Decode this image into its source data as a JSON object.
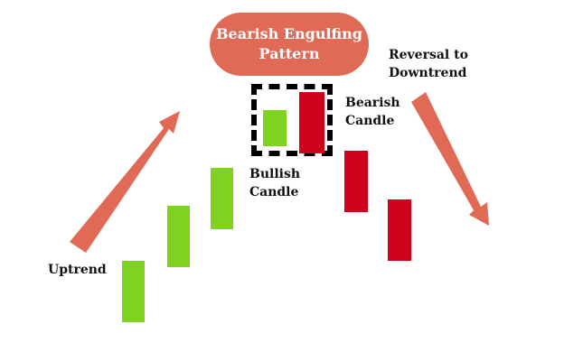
{
  "title": {
    "line1": "Bearish Engulfing",
    "line2": "Pattern"
  },
  "labels": {
    "uptrend": "Uptrend",
    "reversal_line1": "Reversal to",
    "reversal_line2": "Downtrend",
    "bearish_line1": "Bearish",
    "bearish_line2": "Candle",
    "bullish_line1": "Bullish",
    "bullish_line2": "Candle"
  },
  "colors": {
    "bullish": "#7ed321",
    "bearish": "#d0021b",
    "arrow": "#e06a55",
    "title_background": "#e06a55"
  },
  "candles": [
    {
      "type": "bullish"
    },
    {
      "type": "bullish"
    },
    {
      "type": "bullish"
    },
    {
      "type": "bullish",
      "highlighted": true
    },
    {
      "type": "bearish",
      "highlighted": true
    },
    {
      "type": "bearish"
    },
    {
      "type": "bearish"
    }
  ],
  "icons": {
    "uptrend_arrow": "arrow-up-right-icon",
    "downtrend_arrow": "arrow-down-right-icon"
  }
}
